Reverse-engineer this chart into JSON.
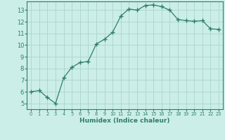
{
  "x": [
    0,
    1,
    2,
    3,
    4,
    5,
    6,
    7,
    8,
    9,
    10,
    11,
    12,
    13,
    14,
    15,
    16,
    17,
    18,
    19,
    20,
    21,
    22,
    23
  ],
  "y": [
    6.0,
    6.1,
    5.5,
    5.0,
    7.2,
    8.1,
    8.5,
    8.6,
    10.1,
    10.5,
    11.1,
    12.5,
    13.1,
    13.0,
    13.4,
    13.45,
    13.3,
    13.0,
    12.2,
    12.1,
    12.05,
    12.1,
    11.4,
    11.35
  ],
  "line_color": "#2e7d6e",
  "marker": "+",
  "marker_size": 4,
  "bg_color": "#cceee8",
  "grid_color": "#aad4cc",
  "xlabel": "Humidex (Indice chaleur)",
  "ylim": [
    4.5,
    13.75
  ],
  "xlim": [
    -0.5,
    23.5
  ],
  "yticks": [
    5,
    6,
    7,
    8,
    9,
    10,
    11,
    12,
    13
  ],
  "xticks": [
    0,
    1,
    2,
    3,
    4,
    5,
    6,
    7,
    8,
    9,
    10,
    11,
    12,
    13,
    14,
    15,
    16,
    17,
    18,
    19,
    20,
    21,
    22,
    23
  ],
  "tick_color": "#2e7d6e",
  "label_color": "#2e7d6e",
  "spine_color": "#2e7d6e"
}
